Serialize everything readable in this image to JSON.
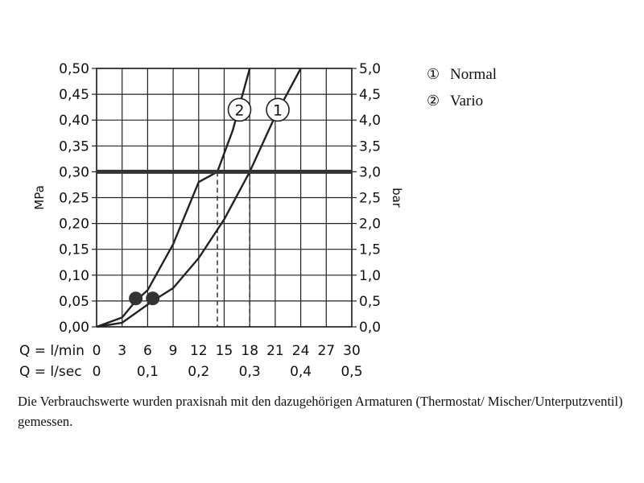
{
  "chart_data": {
    "type": "line",
    "title": "",
    "xlabel": "Q = l/min",
    "x2label": "Q = l/sec",
    "ylabel": "MPa",
    "y2label": "bar",
    "xlim": [
      0,
      30
    ],
    "ylim": [
      0,
      0.5
    ],
    "x_ticks": [
      "0",
      "3",
      "6",
      "9",
      "12",
      "15",
      "18",
      "21",
      "24",
      "27",
      "30"
    ],
    "x2_ticks": [
      {
        "x": 0,
        "label": "0"
      },
      {
        "x": 6,
        "label": "0,1"
      },
      {
        "x": 12,
        "label": "0,2"
      },
      {
        "x": 18,
        "label": "0,3"
      },
      {
        "x": 24,
        "label": "0,4"
      },
      {
        "x": 30,
        "label": "0,5"
      }
    ],
    "y_ticks": [
      "0,00",
      "0,05",
      "0,10",
      "0,15",
      "0,20",
      "0,25",
      "0,30",
      "0,35",
      "0,40",
      "0,45",
      "0,50"
    ],
    "y2_ticks": [
      "0,0",
      "0,5",
      "1,0",
      "1,5",
      "2,0",
      "2,5",
      "3,0",
      "3,5",
      "4,0",
      "4,5",
      "5,0"
    ],
    "grid": true,
    "reference_line": {
      "y": 0.3
    },
    "series": [
      {
        "name": "Normal",
        "marker": "1",
        "x": [
          0,
          3,
          6.6,
          9,
          12,
          15,
          18,
          21,
          24
        ],
        "y": [
          0,
          0.008,
          0.05,
          0.075,
          0.133,
          0.208,
          0.3,
          0.408,
          0.5
        ],
        "dot": {
          "x": 6.6,
          "y": 0.055
        },
        "dash_at_y": {
          "x": 18,
          "y": 0.3
        },
        "circle_label_at": {
          "x": 21.3,
          "y": 0.42
        }
      },
      {
        "name": "Vario",
        "marker": "2",
        "x": [
          0,
          3,
          4.6,
          6,
          9,
          12,
          14.2,
          16,
          18
        ],
        "y": [
          0,
          0.018,
          0.05,
          0.071,
          0.16,
          0.28,
          0.3,
          0.38,
          0.5
        ],
        "dot": {
          "x": 4.6,
          "y": 0.055
        },
        "dash_at_y": {
          "x": 14.2,
          "y": 0.3
        },
        "circle_label_at": {
          "x": 16.8,
          "y": 0.42
        }
      }
    ],
    "legend": {
      "placement": "top-right",
      "items": [
        {
          "marker": "1",
          "label": "Normal"
        },
        {
          "marker": "2",
          "label": "Vario"
        }
      ]
    }
  },
  "legend_symbols": [
    "①",
    "②"
  ],
  "footnote": "Die Verbrauchswerte wurden praxisnah mit den dazugehörigen Armaturen (Thermostat/ Mischer/Unterputzventil) gemessen."
}
